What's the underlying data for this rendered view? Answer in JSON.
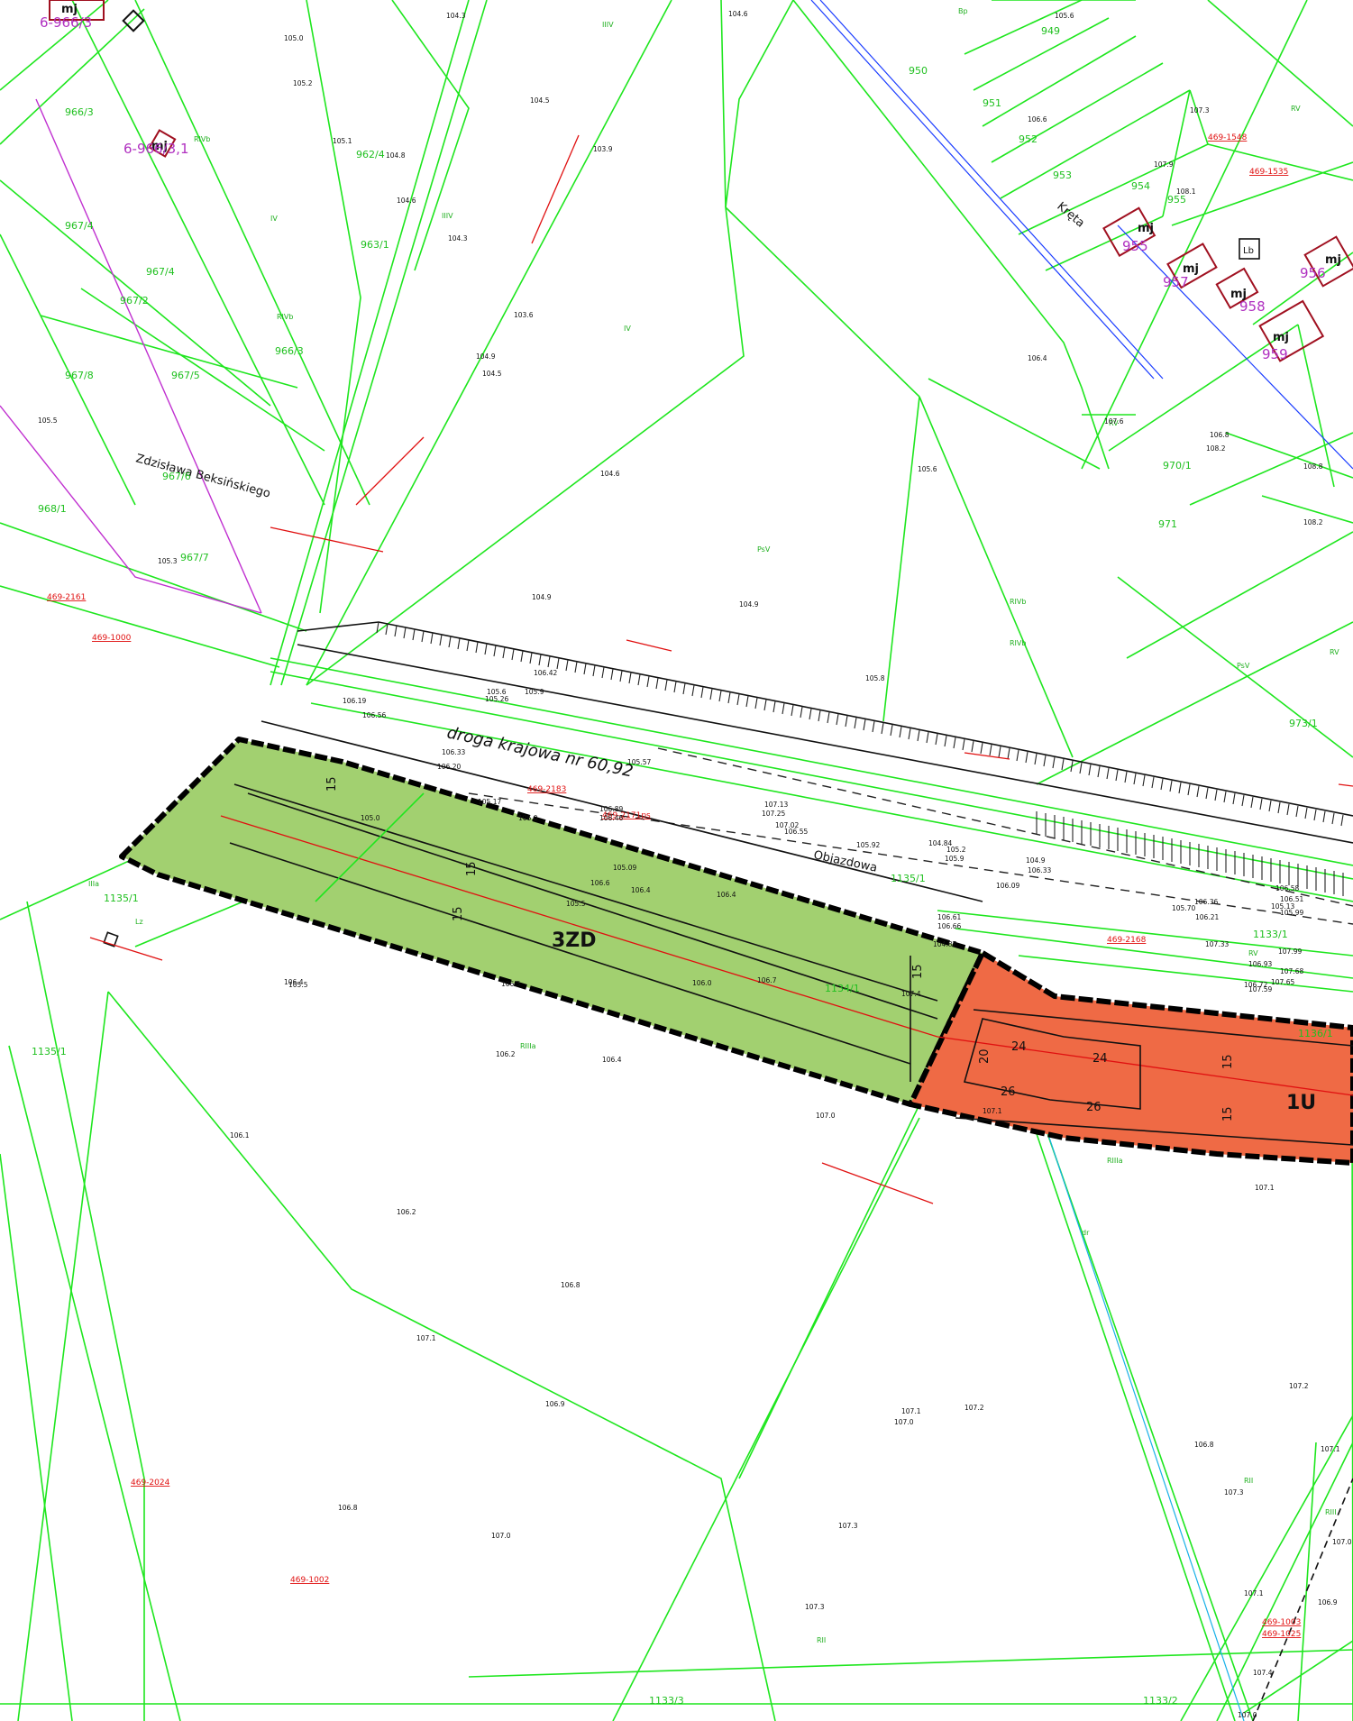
{
  "map": {
    "road_label": "droga krajowa nr 60,92",
    "street_label": "Zdzisława Beksińskiego",
    "street_label_2": "Kręta",
    "detour_label": "Objazdowa",
    "zones": [
      {
        "id": "zone-3zd",
        "label": "3ZD",
        "fill": "#a2d070"
      },
      {
        "id": "zone-1u",
        "label": "1U",
        "fill": "#ef6a45"
      }
    ],
    "dimensions": [
      "15",
      "15",
      "15",
      "15",
      "15",
      "15",
      "20",
      "24",
      "24",
      "26",
      "26"
    ],
    "parcels": [
      "966/3",
      "966/3",
      "967/4",
      "967/4",
      "967/2",
      "967/8",
      "967/5",
      "967/6",
      "968/1",
      "967/7",
      "962/4",
      "963/1",
      "949",
      "950",
      "951",
      "952",
      "953",
      "954",
      "955",
      "970/1",
      "971",
      "973/1",
      "1135/1",
      "1135/1",
      "1136/1",
      "1134/1",
      "1133/2",
      "1133/3",
      "1135/1",
      "1133/1"
    ],
    "land_classes": [
      "RIVb",
      "RIVb",
      "IIIV",
      "IIIV",
      "IV",
      "IV",
      "RIVb",
      "PsV",
      "RIVb",
      "PsV",
      "RV",
      "RV",
      "RV",
      "RV",
      "RIIIa",
      "RIIIa",
      "RII",
      "RII",
      "RIII",
      "Bp",
      "IIIa",
      "Lz",
      "dr"
    ],
    "refs": [
      "469-2161",
      "469-1000",
      "469-2183",
      "469-2171ps",
      "469-2168",
      "469-1548",
      "469-1535",
      "469-2024",
      "469-1002",
      "469-1003",
      "469-1025"
    ],
    "buildings": [
      {
        "label": "mj",
        "num": "6-966/3"
      },
      {
        "label": "mj",
        "num": "6-966/3,1"
      },
      {
        "label": "mj",
        "num": "955"
      },
      {
        "label": "mj",
        "num": "957"
      },
      {
        "label": "mj",
        "num": "958"
      },
      {
        "label": "mj",
        "num": "959"
      },
      {
        "label": "mj",
        "num": "956"
      },
      {
        "label": "Lb",
        "num": ""
      }
    ],
    "elevations": [
      "104.6",
      "104.3",
      "105.0",
      "105.2",
      "105.1",
      "104.8",
      "104.5",
      "103.9",
      "104.6",
      "104.3",
      "103.6",
      "104.9",
      "104.5",
      "104.6",
      "104.9",
      "104.9",
      "105.5",
      "105.3",
      "105.5",
      "105.0",
      "105.8",
      "106.4",
      "106.5",
      "106.0",
      "106.2",
      "106.4",
      "105.5",
      "106.1",
      "106.2",
      "106.8",
      "107.1",
      "106.9",
      "107.1",
      "107.2",
      "107.0",
      "106.8",
      "107.0",
      "107.3",
      "107.3",
      "107.1",
      "106.8",
      "107.3",
      "107.4",
      "108.1",
      "108.2",
      "106.8",
      "106.4",
      "107.3",
      "107.9",
      "108.1",
      "107.6",
      "108.2",
      "108.8",
      "105.6",
      "106.6",
      "105.6",
      "107.1",
      "107.2",
      "107.1",
      "107.0",
      "106.9",
      "107.0",
      "107.1",
      "107.1",
      "107.0",
      "107.1",
      "107.4",
      "106.7",
      "106.4",
      "106.4",
      "106.6",
      "106.0",
      "105.6",
      "105.9",
      "105.2",
      "105.9",
      "104.9",
      "106.33",
      "105.70",
      "106.58",
      "106.51",
      "106.61",
      "106.66",
      "106.09",
      "105.92",
      "106.55",
      "107.02",
      "107.25",
      "107.13",
      "106.89",
      "106.46",
      "106.19",
      "106.56",
      "105.26",
      "106.42",
      "106.33",
      "106.20",
      "105.17",
      "105.09",
      "104.84",
      "104.87",
      "105.13",
      "105.99",
      "106.36",
      "106.21",
      "107.33",
      "107.59",
      "107.65",
      "107.99",
      "106.72",
      "107.68",
      "106.93",
      "105.57"
    ]
  }
}
